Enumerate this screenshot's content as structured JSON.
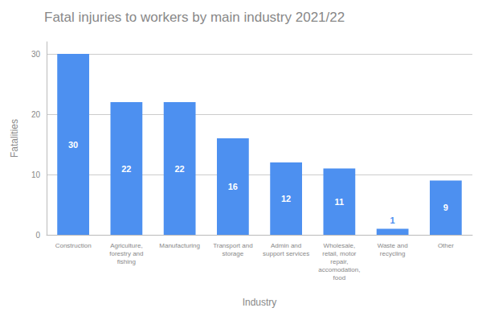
{
  "chart_data": {
    "type": "bar",
    "title": "Fatal injuries to workers by main industry 2021/22",
    "xlabel": "Industry",
    "ylabel": "Fatalities",
    "categories": [
      "Construction",
      "Agriculture,\nforestry and\nfishing",
      "Manufacturing",
      "Transport and\nstorage",
      "Admin and\nsupport services",
      "Wholesale,\nretail, motor\nrepair,\naccomodation,\nfood",
      "Waste and\nrecycling",
      "Other"
    ],
    "values": [
      30,
      22,
      22,
      16,
      12,
      11,
      1,
      9
    ],
    "color": "#4d90f0",
    "ylim": [
      0,
      32
    ],
    "yticks": [
      0,
      10,
      20,
      30
    ],
    "grid": true,
    "data_labels": true
  }
}
